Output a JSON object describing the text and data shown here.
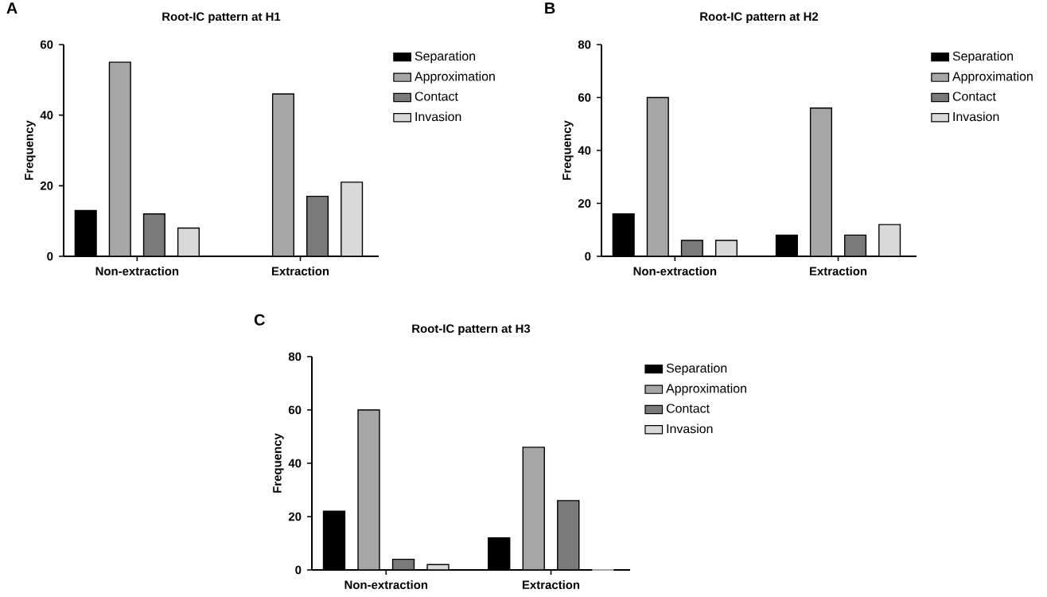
{
  "chart_data": [
    {
      "type": "bar",
      "title": "Root-IC pattern at H1",
      "annotations": [
        "A"
      ],
      "ylabel": "Frequency",
      "categories": [
        "Non-extraction",
        "Extraction"
      ],
      "ylim": [
        0,
        60
      ],
      "yticks": [
        0,
        20,
        40,
        60
      ],
      "legend": "right",
      "series": [
        {
          "name": "Separation",
          "color": "#000000",
          "values": [
            13,
            0
          ]
        },
        {
          "name": "Approximation",
          "color": "#a6a6a6",
          "values": [
            55,
            46
          ]
        },
        {
          "name": "Contact",
          "color": "#7a7a7a",
          "values": [
            12,
            17
          ]
        },
        {
          "name": "Invasion",
          "color": "#d9d9d9",
          "values": [
            8,
            21
          ]
        }
      ]
    },
    {
      "type": "bar",
      "title": "Root-IC pattern at H2",
      "annotations": [
        "B"
      ],
      "ylabel": "Frequency",
      "categories": [
        "Non-extraction",
        "Extraction"
      ],
      "ylim": [
        0,
        80
      ],
      "yticks": [
        0,
        20,
        40,
        60,
        80
      ],
      "legend": "right",
      "series": [
        {
          "name": "Separation",
          "color": "#000000",
          "values": [
            16,
            8
          ]
        },
        {
          "name": "Approximation",
          "color": "#a6a6a6",
          "values": [
            60,
            56
          ]
        },
        {
          "name": "Contact",
          "color": "#7a7a7a",
          "values": [
            6,
            8
          ]
        },
        {
          "name": "Invasion",
          "color": "#d9d9d9",
          "values": [
            6,
            12
          ]
        }
      ]
    },
    {
      "type": "bar",
      "title": "Root-IC pattern at H3",
      "annotations": [
        "C"
      ],
      "ylabel": "Frequency",
      "categories": [
        "Non-extraction",
        "Extraction"
      ],
      "ylim": [
        0,
        80
      ],
      "yticks": [
        0,
        20,
        40,
        60,
        80
      ],
      "legend": "right",
      "series": [
        {
          "name": "Separation",
          "color": "#000000",
          "values": [
            22,
            12
          ]
        },
        {
          "name": "Approximation",
          "color": "#a6a6a6",
          "values": [
            60,
            46
          ]
        },
        {
          "name": "Contact",
          "color": "#7a7a7a",
          "values": [
            4,
            26
          ]
        },
        {
          "name": "Invasion",
          "color": "#d9d9d9",
          "values": [
            2,
            0
          ]
        }
      ]
    }
  ]
}
